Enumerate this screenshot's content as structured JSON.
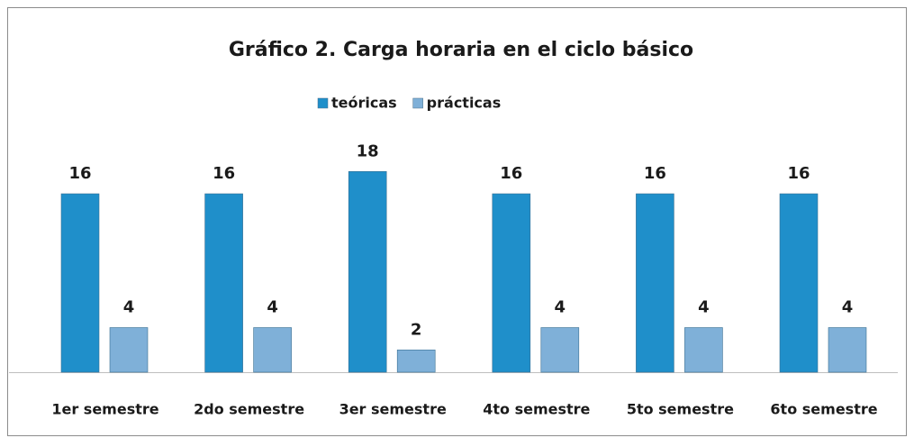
{
  "chart_data": {
    "type": "bar",
    "title": "Gráfico 2. Carga horaria en el ciclo básico",
    "categories": [
      "1er semestre",
      "2do semestre",
      "3er semestre",
      "4to semestre",
      "5to semestre",
      "6to semestre"
    ],
    "series": [
      {
        "name": "teóricas",
        "color": "#1f8fca",
        "values": [
          16,
          16,
          18,
          16,
          16,
          16
        ]
      },
      {
        "name": "prácticas",
        "color": "#7fb0d8",
        "values": [
          4,
          4,
          2,
          4,
          4,
          4
        ]
      }
    ],
    "legend": "top"
  }
}
